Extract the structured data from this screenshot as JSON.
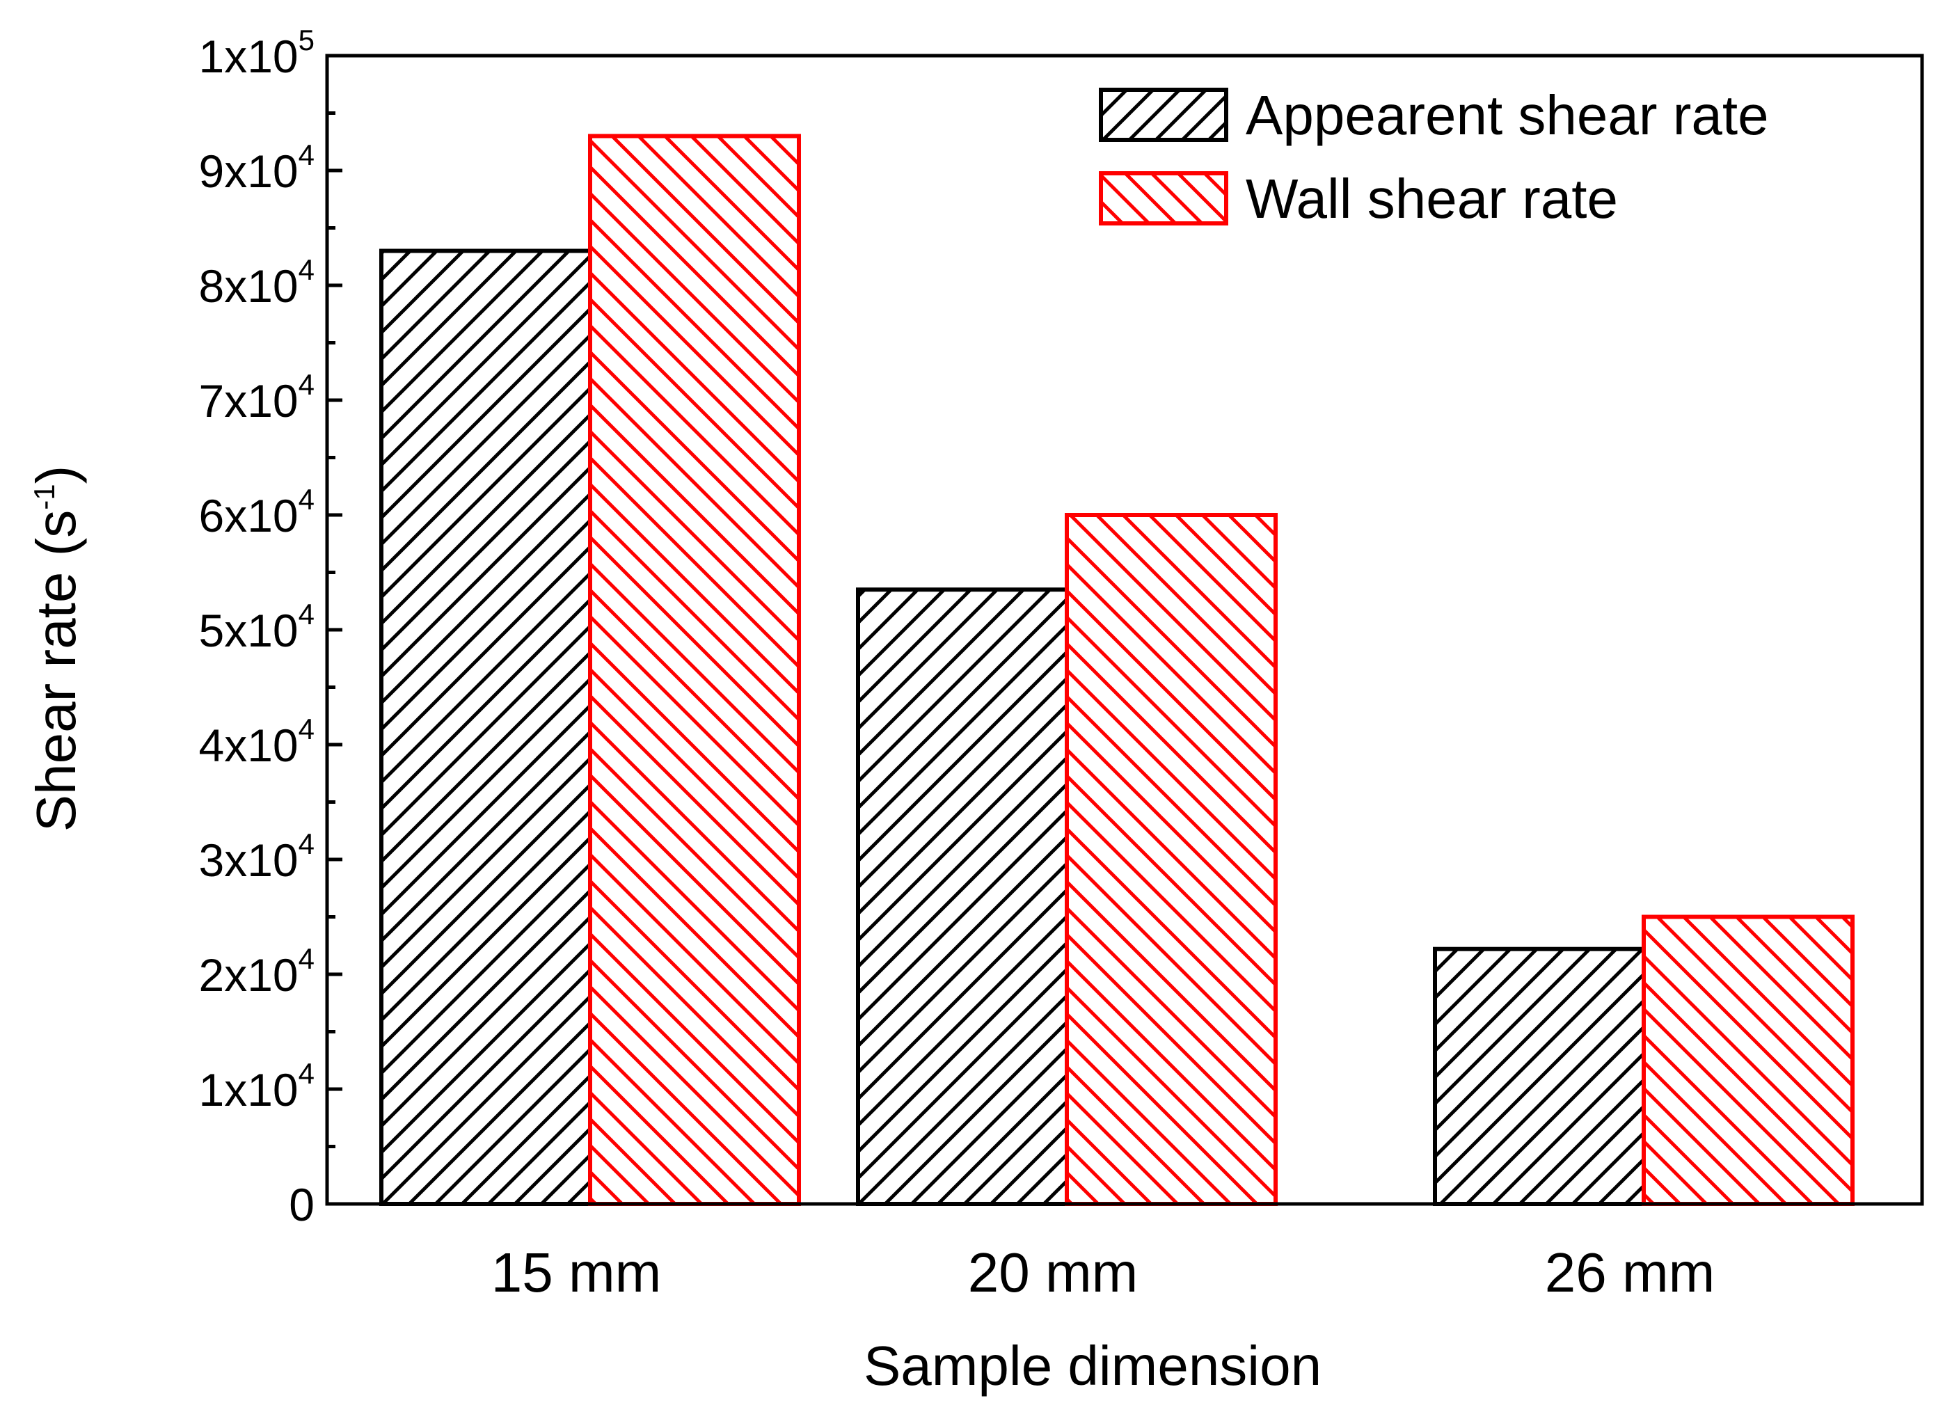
{
  "chart_data": {
    "type": "bar",
    "title": "",
    "xlabel": "Sample dimension",
    "ylabel": "Shear rate",
    "ylabel_unit": "(s",
    "ylabel_unit_exp": "-1",
    "ylabel_unit_close": ")",
    "categories": [
      "15 mm",
      "20 mm",
      "26 mm"
    ],
    "series": [
      {
        "name": "Appearent shear rate",
        "values": [
          83000,
          53500,
          22200
        ],
        "color": "#000000",
        "hatch": "forward"
      },
      {
        "name": "Wall shear rate",
        "values": [
          93000,
          60000,
          25000
        ],
        "color": "#ff0000",
        "hatch": "backward"
      }
    ],
    "ylim": [
      0,
      100000
    ],
    "yticks": [
      {
        "value": 0,
        "mantissa": "0",
        "exp": ""
      },
      {
        "value": 10000,
        "mantissa": "1x10",
        "exp": "4"
      },
      {
        "value": 20000,
        "mantissa": "2x10",
        "exp": "4"
      },
      {
        "value": 30000,
        "mantissa": "3x10",
        "exp": "4"
      },
      {
        "value": 40000,
        "mantissa": "4x10",
        "exp": "4"
      },
      {
        "value": 50000,
        "mantissa": "5x10",
        "exp": "4"
      },
      {
        "value": 60000,
        "mantissa": "6x10",
        "exp": "4"
      },
      {
        "value": 70000,
        "mantissa": "7x10",
        "exp": "4"
      },
      {
        "value": 80000,
        "mantissa": "8x10",
        "exp": "4"
      },
      {
        "value": 90000,
        "mantissa": "9x10",
        "exp": "4"
      },
      {
        "value": 100000,
        "mantissa": "1x10",
        "exp": "5"
      }
    ],
    "legend_position": "top-right",
    "grid": false
  }
}
